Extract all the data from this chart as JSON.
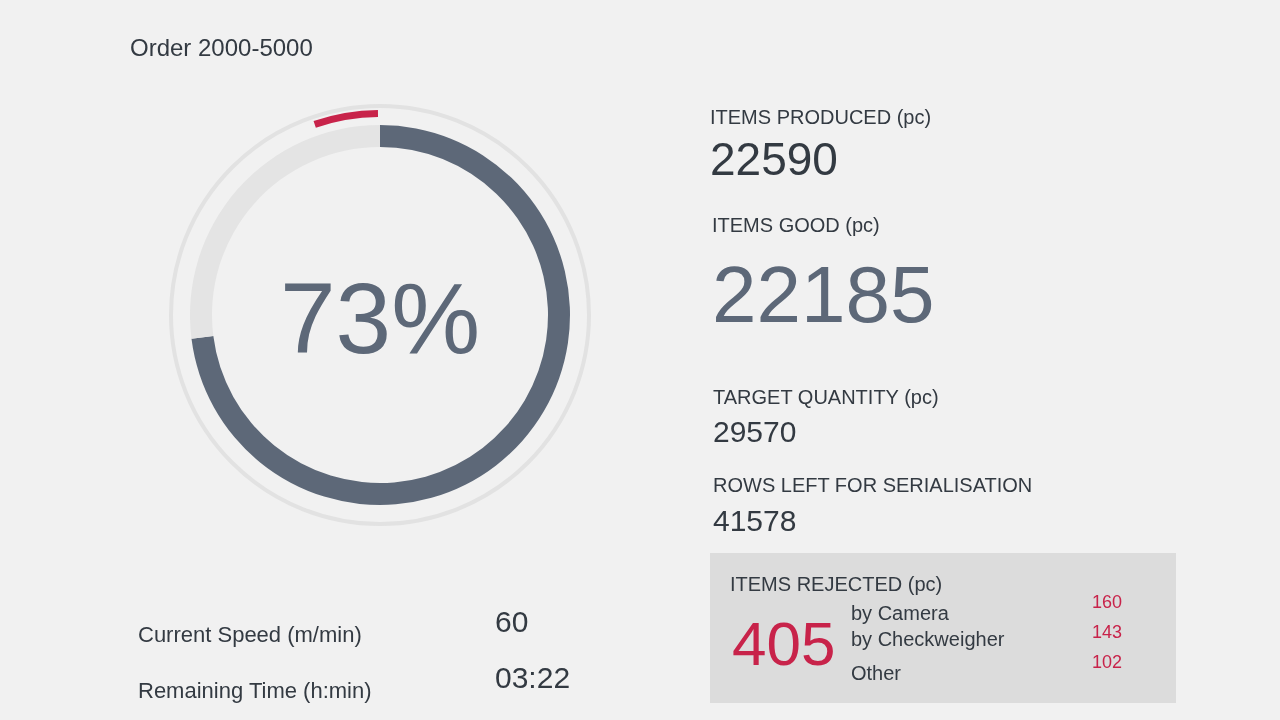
{
  "chart_data": [
    {
      "type": "donut",
      "title": "Order 2000-5000",
      "categories": [
        null,
        null
      ],
      "values": [
        73,
        27
      ],
      "colors": [
        "#5d6878",
        "#e4e4e4"
      ],
      "value_labels": [
        "73%",
        null
      ]
    },
    {
      "type": "other",
      "annotations": [
        "ITEMS PRODUCED (pc)",
        "22590",
        "ITEMS GOOD (pc)",
        "22185",
        "TARGET QUANTITY (pc)",
        "29570",
        "ROWS LEFT FOR SERIALISATION",
        "41578",
        "ITEMS REJECTED (pc)",
        "405",
        "by Camera",
        "160",
        "by Checkweigher",
        "143",
        "Other",
        "102",
        "Current Speed (m/min)",
        "60",
        "Remaining Time (h:min)",
        "03:22"
      ]
    }
  ]
}
